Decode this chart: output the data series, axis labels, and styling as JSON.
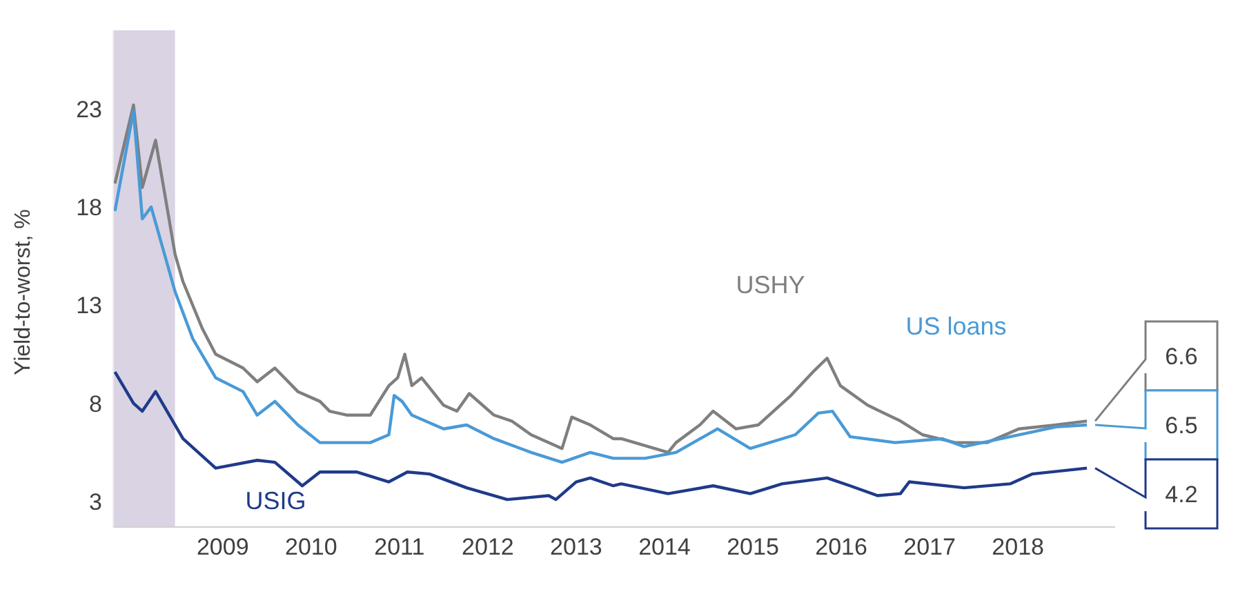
{
  "chart_data": {
    "type": "line",
    "ylabel": "Yield-to-worst, %",
    "xlim": [
      2007.76,
      2019.1
    ],
    "xticks": [
      2009,
      2010,
      2011,
      2012,
      2013,
      2014,
      2015,
      2016,
      2017,
      2018
    ],
    "ylim": [
      1.7,
      27
    ],
    "yticks": [
      3,
      8,
      13,
      18,
      23
    ],
    "bands": [
      {
        "axis": "x",
        "from": 2007.76,
        "to": 2008.46,
        "color": "#d9d3e3"
      }
    ],
    "series": [
      {
        "name": "USHY",
        "color": "#7f7f7f",
        "x": [
          2007.78,
          2007.99,
          2008.09,
          2008.24,
          2008.46,
          2008.55,
          2008.77,
          2008.92,
          2009.23,
          2009.39,
          2009.59,
          2009.85,
          2010.1,
          2010.21,
          2010.41,
          2010.67,
          2010.88,
          2010.98,
          2011.06,
          2011.14,
          2011.25,
          2011.5,
          2011.65,
          2011.79,
          2012.07,
          2012.27,
          2012.49,
          2012.84,
          2012.95,
          2013.16,
          2013.42,
          2013.51,
          2014.04,
          2014.13,
          2014.4,
          2014.55,
          2014.81,
          2015.06,
          2015.43,
          2015.68,
          2015.84,
          2015.99,
          2016.3,
          2016.67,
          2016.92,
          2017.29,
          2017.65,
          2018.01,
          2018.43,
          2018.78
        ],
        "values": [
          19.2,
          23.2,
          19.0,
          21.4,
          15.6,
          14.2,
          11.8,
          10.5,
          9.8,
          9.1,
          9.8,
          8.6,
          8.1,
          7.6,
          7.4,
          7.4,
          8.9,
          9.3,
          10.5,
          8.9,
          9.3,
          7.9,
          7.6,
          8.5,
          7.4,
          7.1,
          6.4,
          5.7,
          7.3,
          6.9,
          6.2,
          6.2,
          5.5,
          6.0,
          6.9,
          7.6,
          6.7,
          6.9,
          8.4,
          9.6,
          10.3,
          8.9,
          7.9,
          7.1,
          6.4,
          6.0,
          6.0,
          6.7,
          6.9,
          7.1
        ]
      },
      {
        "name": "US loans",
        "color": "#4a9ad6",
        "x": [
          2007.78,
          2007.99,
          2008.09,
          2008.19,
          2008.46,
          2008.66,
          2008.92,
          2009.23,
          2009.39,
          2009.59,
          2009.85,
          2010.1,
          2010.67,
          2010.88,
          2010.94,
          2011.03,
          2011.14,
          2011.5,
          2011.76,
          2012.07,
          2012.49,
          2012.84,
          2013.16,
          2013.42,
          2013.78,
          2014.13,
          2014.6,
          2014.97,
          2015.48,
          2015.74,
          2015.9,
          2016.1,
          2016.61,
          2017.14,
          2017.39,
          2017.91,
          2018.43,
          2018.78
        ],
        "values": [
          17.8,
          22.9,
          17.4,
          18.0,
          13.7,
          11.3,
          9.3,
          8.6,
          7.4,
          8.1,
          6.9,
          6.0,
          6.0,
          6.4,
          8.4,
          8.1,
          7.4,
          6.7,
          6.9,
          6.2,
          5.5,
          5.0,
          5.5,
          5.2,
          5.2,
          5.5,
          6.7,
          5.7,
          6.4,
          7.5,
          7.6,
          6.3,
          6.0,
          6.2,
          5.8,
          6.3,
          6.8,
          6.9
        ]
      },
      {
        "name": "USIG",
        "color": "#1f3a8a",
        "x": [
          2007.78,
          2007.99,
          2008.09,
          2008.24,
          2008.55,
          2008.92,
          2009.39,
          2009.59,
          2009.9,
          2010.1,
          2010.52,
          2010.88,
          2011.09,
          2011.34,
          2011.76,
          2012.22,
          2012.69,
          2012.77,
          2013.0,
          2013.16,
          2013.42,
          2013.51,
          2014.04,
          2014.55,
          2014.97,
          2015.33,
          2015.84,
          2016.1,
          2016.41,
          2016.67,
          2016.77,
          2017.39,
          2017.91,
          2018.16,
          2018.78
        ],
        "values": [
          9.6,
          8.0,
          7.6,
          8.6,
          6.2,
          4.7,
          5.1,
          5.0,
          3.8,
          4.5,
          4.5,
          4.0,
          4.5,
          4.4,
          3.7,
          3.1,
          3.3,
          3.1,
          4.0,
          4.2,
          3.8,
          3.9,
          3.4,
          3.8,
          3.4,
          3.9,
          4.2,
          3.8,
          3.3,
          3.4,
          4.0,
          3.7,
          3.9,
          4.4,
          4.7
        ]
      }
    ],
    "annotations": [
      "6.6",
      "6.5",
      "4.2"
    ]
  }
}
